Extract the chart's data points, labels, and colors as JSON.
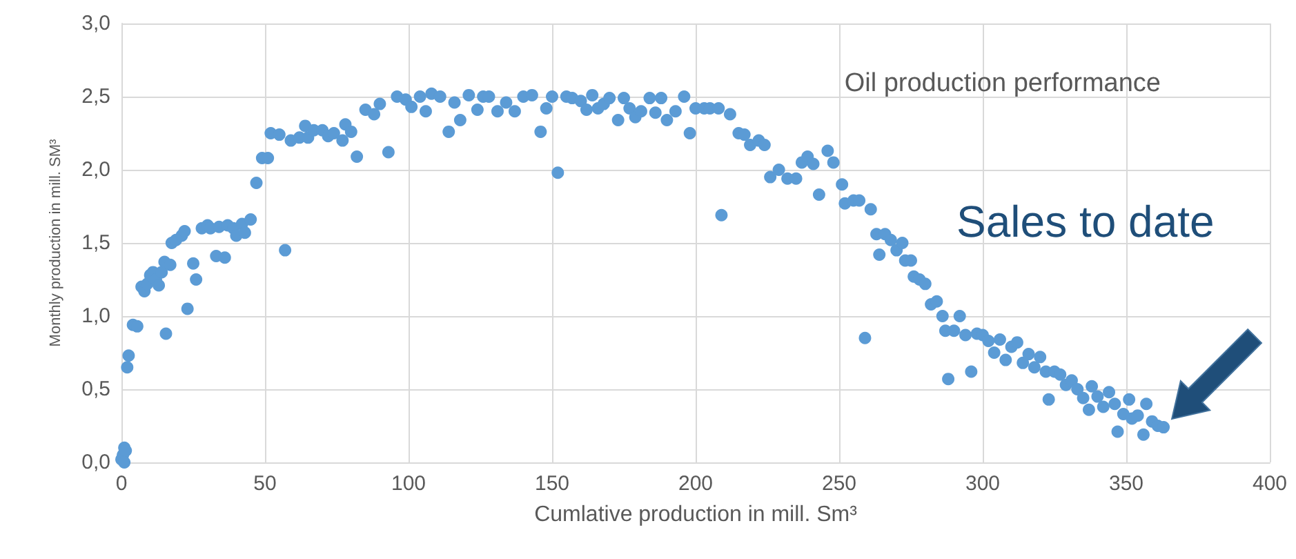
{
  "chart_data": {
    "type": "scatter",
    "xlabel": "Cumlative production in mill. Sm³",
    "ylabel": "Monthly production in mill. SM³",
    "annotations": [
      "Oil production performance",
      "Sales to date"
    ],
    "xlim": [
      0,
      400
    ],
    "xticks": [
      0,
      50,
      100,
      150,
      200,
      250,
      300,
      350,
      400
    ],
    "ylim": [
      0,
      3
    ],
    "yticks": [
      {
        "value": 0,
        "label": "0,0"
      },
      {
        "value": 0.5,
        "label": "0,5"
      },
      {
        "value": 1,
        "label": "1,0"
      },
      {
        "value": 1.5,
        "label": "1,5"
      },
      {
        "value": 2,
        "label": "2,0"
      },
      {
        "value": 2.5,
        "label": "2,5"
      },
      {
        "value": 3,
        "label": "3,0"
      }
    ],
    "grid": true,
    "marker": "circle",
    "series": [
      {
        "color": "#5b9bd5",
        "x": [
          0,
          0.5,
          1,
          1.5,
          1,
          2,
          2.5,
          4,
          5.5,
          7,
          8,
          9,
          10,
          11,
          12,
          13,
          14,
          15,
          15.5,
          17,
          17.5,
          19,
          21,
          22,
          23,
          25,
          26,
          28,
          30,
          31,
          33,
          34,
          36,
          37,
          39,
          40,
          42,
          43,
          45,
          47,
          49,
          51,
          52,
          55,
          57,
          59,
          62,
          64,
          65,
          67,
          70,
          72,
          74,
          77,
          78,
          80,
          82,
          85,
          88,
          90,
          93,
          96,
          99,
          101,
          104,
          106,
          108,
          111,
          114,
          116,
          118,
          121,
          124,
          126,
          128,
          131,
          134,
          137,
          140,
          143,
          146,
          148,
          152,
          150,
          155,
          157,
          160,
          162,
          164,
          166,
          168,
          170,
          173,
          175,
          177,
          179,
          181,
          184,
          186,
          188,
          190,
          193,
          196,
          198,
          200,
          203,
          205,
          209,
          208,
          212,
          215,
          217,
          219,
          222,
          224,
          226,
          229,
          232,
          235,
          237,
          239,
          241,
          243,
          246,
          248,
          251,
          252,
          255,
          257,
          259,
          261,
          263,
          264,
          266,
          268,
          270,
          272,
          273,
          275,
          276,
          278,
          280,
          282,
          284,
          286,
          287,
          288,
          290,
          292,
          294,
          296,
          298,
          300,
          302,
          304,
          306,
          308,
          310,
          312,
          314,
          316,
          318,
          320,
          322,
          323,
          325,
          327,
          329,
          331,
          333,
          335,
          337,
          338,
          340,
          342,
          344,
          346,
          347,
          349,
          351,
          352,
          354,
          356,
          357,
          359,
          361,
          363
        ],
        "values": [
          0.02,
          0.05,
          0.1,
          0.08,
          0,
          0.65,
          0.73,
          0.94,
          0.93,
          1.2,
          1.17,
          1.22,
          1.28,
          1.3,
          1.25,
          1.21,
          1.3,
          1.37,
          0.88,
          1.35,
          1.5,
          1.52,
          1.55,
          1.58,
          1.05,
          1.36,
          1.25,
          1.6,
          1.62,
          1.6,
          1.41,
          1.61,
          1.4,
          1.62,
          1.6,
          1.55,
          1.63,
          1.57,
          1.66,
          1.91,
          2.08,
          2.08,
          2.25,
          2.24,
          1.45,
          2.2,
          2.22,
          2.3,
          2.22,
          2.27,
          2.27,
          2.23,
          2.25,
          2.2,
          2.31,
          2.26,
          2.09,
          2.41,
          2.38,
          2.45,
          2.12,
          2.5,
          2.48,
          2.43,
          2.5,
          2.4,
          2.52,
          2.5,
          2.26,
          2.46,
          2.34,
          2.51,
          2.41,
          2.5,
          2.5,
          2.4,
          2.46,
          2.4,
          2.5,
          2.51,
          2.26,
          2.42,
          1.98,
          2.5,
          2.5,
          2.49,
          2.47,
          2.41,
          2.51,
          2.42,
          2.45,
          2.49,
          2.34,
          2.49,
          2.42,
          2.36,
          2.4,
          2.49,
          2.39,
          2.49,
          2.34,
          2.4,
          2.5,
          2.25,
          2.42,
          2.42,
          2.42,
          1.69,
          2.42,
          2.38,
          2.25,
          2.24,
          2.17,
          2.2,
          2.17,
          1.95,
          2,
          1.94,
          1.94,
          2.05,
          2.09,
          2.04,
          1.83,
          2.13,
          2.05,
          1.9,
          1.77,
          1.79,
          1.79,
          0.85,
          1.73,
          1.56,
          1.42,
          1.56,
          1.52,
          1.45,
          1.5,
          1.38,
          1.38,
          1.27,
          1.25,
          1.22,
          1.08,
          1.1,
          1,
          0.9,
          0.57,
          0.9,
          1,
          0.87,
          0.62,
          0.88,
          0.87,
          0.83,
          0.75,
          0.84,
          0.7,
          0.79,
          0.82,
          0.68,
          0.74,
          0.65,
          0.72,
          0.62,
          0.43,
          0.62,
          0.6,
          0.53,
          0.56,
          0.5,
          0.44,
          0.36,
          0.52,
          0.45,
          0.38,
          0.48,
          0.4,
          0.21,
          0.33,
          0.43,
          0.3,
          0.32,
          0.19,
          0.4,
          0.28,
          0.25,
          0.24
        ]
      }
    ]
  }
}
